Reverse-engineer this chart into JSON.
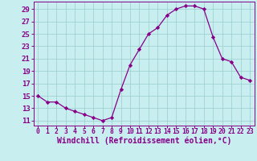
{
  "x": [
    0,
    1,
    2,
    3,
    4,
    5,
    6,
    7,
    8,
    9,
    10,
    11,
    12,
    13,
    14,
    15,
    16,
    17,
    18,
    19,
    20,
    21,
    22,
    23
  ],
  "y": [
    15,
    14,
    14,
    13,
    12.5,
    12,
    11.5,
    11,
    11.5,
    16,
    20,
    22.5,
    25,
    26,
    28,
    29,
    29.5,
    29.5,
    29,
    24.5,
    21,
    20.5,
    18,
    17.5
  ],
  "line_color": "#880088",
  "marker": "D",
  "marker_size": 2.2,
  "bg_color": "#c8eef0",
  "grid_color": "#99cccc",
  "xlabel": "Windchill (Refroidissement éolien,°C)",
  "xlabel_color": "#880088",
  "yticks": [
    11,
    13,
    15,
    17,
    19,
    21,
    23,
    25,
    27,
    29
  ],
  "xticks": [
    0,
    1,
    2,
    3,
    4,
    5,
    6,
    7,
    8,
    9,
    10,
    11,
    12,
    13,
    14,
    15,
    16,
    17,
    18,
    19,
    20,
    21,
    22,
    23
  ],
  "ylim": [
    10.2,
    30.2
  ],
  "xlim": [
    -0.5,
    23.5
  ],
  "tick_color": "#880088",
  "spine_color": "#880088",
  "xlabel_fontsize": 7,
  "ytick_fontsize": 6.5,
  "xtick_fontsize": 5.8
}
